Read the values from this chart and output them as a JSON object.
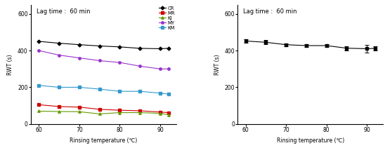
{
  "x": [
    60,
    65,
    70,
    75,
    80,
    85,
    90,
    92
  ],
  "left": {
    "CR": [
      450,
      440,
      432,
      425,
      420,
      412,
      410,
      412
    ],
    "MR": [
      105,
      95,
      92,
      80,
      75,
      72,
      65,
      62
    ],
    "KJ": [
      70,
      68,
      67,
      55,
      62,
      62,
      58,
      50
    ],
    "MY": [
      400,
      375,
      360,
      345,
      335,
      315,
      300,
      300
    ],
    "KM": [
      210,
      200,
      200,
      190,
      178,
      178,
      168,
      163
    ]
  },
  "right": {
    "combined": [
      452,
      445,
      432,
      427,
      427,
      413,
      410,
      412
    ],
    "errors": [
      10,
      12,
      8,
      8,
      8,
      12,
      20,
      10
    ]
  },
  "colors": {
    "CR": "#000000",
    "MR": "#cc0000",
    "KJ": "#669900",
    "MY": "#9933cc",
    "KM": "#3399cc"
  },
  "combined_color": "#000000",
  "xlabel": "Rinsing temperature (℃)",
  "ylabel": "RWT (s)",
  "title": "Lag time :  60 min",
  "ylim": [
    0,
    650
  ],
  "yticks": [
    0,
    200,
    400,
    600
  ],
  "xlim": [
    58,
    94
  ],
  "xticks": [
    60,
    70,
    80,
    90
  ]
}
